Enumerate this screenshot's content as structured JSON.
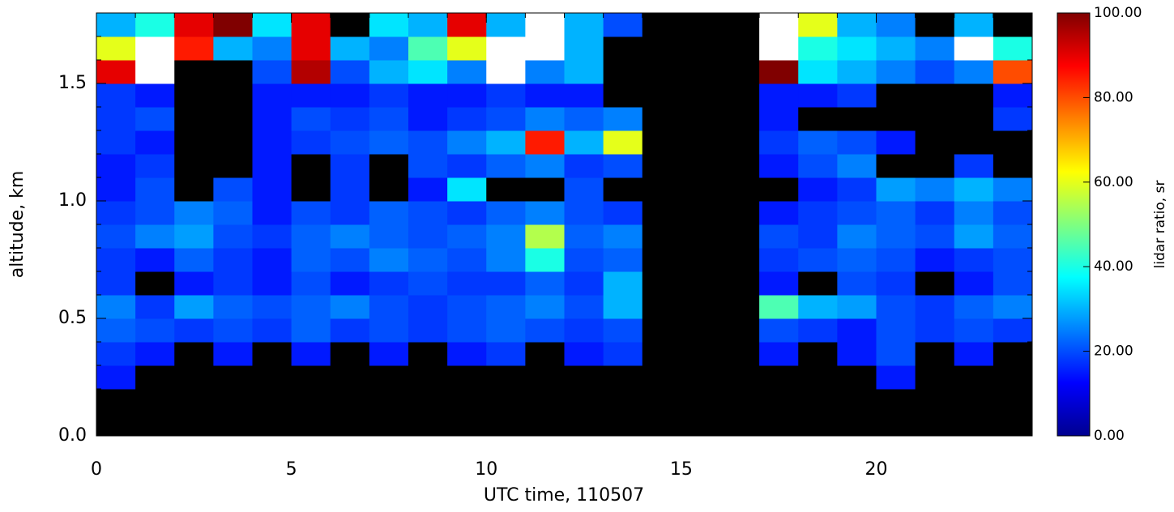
{
  "chart_data": {
    "type": "heatmap",
    "x_label": "UTC time, 110507",
    "y_label": "altitude, km",
    "colorbar_label": "lidar ratio, sr",
    "xlim": [
      0,
      24
    ],
    "ylim": [
      0,
      1.8
    ],
    "xticks": [
      0,
      5,
      10,
      15,
      20
    ],
    "yticks": [
      {
        "value": 0,
        "label": "0.0"
      },
      {
        "value": 0.5,
        "label": "0.5"
      },
      {
        "value": 1,
        "label": "1.0"
      },
      {
        "value": 1.5,
        "label": "1.5"
      }
    ],
    "zlim": [
      0,
      100
    ],
    "zticks": [
      {
        "value": 0,
        "label": "0.00"
      },
      {
        "value": 20,
        "label": "20.00"
      },
      {
        "value": 40,
        "label": "40.00"
      },
      {
        "value": 60,
        "label": "60.00"
      },
      {
        "value": 80,
        "label": "80.00"
      },
      {
        "value": 100,
        "label": "100.00"
      }
    ],
    "x": [
      0,
      1,
      2,
      3,
      4,
      5,
      6,
      7,
      8,
      9,
      10,
      11,
      12,
      13,
      14,
      15,
      16,
      17,
      18,
      19,
      20,
      21,
      22,
      23,
      24
    ],
    "y": [
      0,
      0.1,
      0.2,
      0.3,
      0.4,
      0.5,
      0.6,
      0.7,
      0.8,
      0.9,
      1,
      1.1,
      1.2,
      1.3,
      1.4,
      1.5,
      1.6,
      1.7,
      1.8
    ],
    "z": [
      [
        null,
        null,
        null,
        null,
        null,
        null,
        null,
        null,
        null,
        null,
        null,
        null,
        null,
        null,
        null,
        null,
        null,
        null,
        null,
        null,
        null,
        null,
        null,
        null
      ],
      [
        null,
        null,
        null,
        null,
        null,
        null,
        null,
        null,
        null,
        null,
        null,
        null,
        null,
        null,
        null,
        null,
        null,
        null,
        null,
        null,
        null,
        null,
        null,
        null
      ],
      [
        15,
        null,
        null,
        null,
        null,
        null,
        null,
        null,
        null,
        null,
        null,
        null,
        null,
        null,
        null,
        null,
        null,
        null,
        null,
        null,
        15,
        null,
        null,
        null
      ],
      [
        18,
        15,
        null,
        15,
        null,
        15,
        null,
        15,
        null,
        15,
        18,
        null,
        15,
        18,
        null,
        null,
        null,
        15,
        null,
        15,
        20,
        null,
        15,
        null
      ],
      [
        22,
        20,
        18,
        20,
        18,
        22,
        18,
        20,
        18,
        20,
        22,
        20,
        18,
        20,
        null,
        null,
        null,
        20,
        18,
        15,
        20,
        18,
        20,
        18
      ],
      [
        25,
        18,
        28,
        22,
        20,
        22,
        25,
        20,
        18,
        20,
        22,
        25,
        20,
        30,
        null,
        null,
        null,
        45,
        30,
        28,
        20,
        18,
        22,
        25
      ],
      [
        18,
        null,
        15,
        18,
        15,
        20,
        15,
        18,
        20,
        18,
        18,
        22,
        18,
        30,
        null,
        null,
        null,
        15,
        null,
        20,
        18,
        null,
        15,
        20
      ],
      [
        18,
        15,
        22,
        18,
        15,
        22,
        20,
        25,
        22,
        20,
        25,
        40,
        20,
        22,
        null,
        null,
        null,
        18,
        20,
        22,
        20,
        15,
        18,
        20
      ],
      [
        20,
        25,
        28,
        20,
        18,
        22,
        25,
        22,
        20,
        22,
        25,
        55,
        22,
        25,
        null,
        null,
        null,
        20,
        18,
        25,
        22,
        20,
        28,
        22
      ],
      [
        18,
        20,
        25,
        22,
        15,
        20,
        18,
        22,
        20,
        18,
        22,
        25,
        20,
        18,
        null,
        null,
        null,
        15,
        18,
        20,
        22,
        18,
        25,
        20
      ],
      [
        15,
        20,
        null,
        20,
        15,
        null,
        18,
        null,
        15,
        35,
        null,
        null,
        20,
        null,
        null,
        null,
        null,
        null,
        15,
        18,
        28,
        25,
        30,
        25
      ],
      [
        15,
        18,
        null,
        null,
        15,
        null,
        18,
        null,
        20,
        18,
        22,
        25,
        18,
        20,
        null,
        null,
        null,
        15,
        20,
        25,
        null,
        null,
        18,
        null
      ],
      [
        18,
        15,
        null,
        null,
        15,
        18,
        20,
        22,
        20,
        25,
        30,
        85,
        30,
        60,
        null,
        null,
        null,
        18,
        22,
        20,
        15,
        null,
        null,
        null
      ],
      [
        18,
        20,
        null,
        null,
        15,
        20,
        18,
        20,
        15,
        18,
        20,
        25,
        22,
        25,
        null,
        null,
        null,
        15,
        null,
        null,
        null,
        null,
        null,
        18
      ],
      [
        18,
        15,
        null,
        null,
        15,
        15,
        15,
        18,
        15,
        15,
        18,
        15,
        15,
        null,
        null,
        null,
        null,
        15,
        15,
        18,
        null,
        null,
        null,
        15
      ],
      [
        90,
        110,
        null,
        null,
        20,
        95,
        20,
        30,
        35,
        25,
        110,
        25,
        30,
        null,
        null,
        null,
        null,
        100,
        35,
        30,
        25,
        20,
        25,
        80
      ],
      [
        60,
        110,
        85,
        30,
        25,
        90,
        30,
        25,
        45,
        60,
        110,
        110,
        30,
        null,
        null,
        null,
        null,
        110,
        40,
        35,
        30,
        25,
        110,
        40
      ],
      [
        30,
        40,
        90,
        100,
        35,
        90,
        null,
        35,
        30,
        90,
        30,
        110,
        30,
        20,
        null,
        null,
        null,
        110,
        60,
        30,
        25,
        null,
        30,
        null
      ]
    ]
  }
}
